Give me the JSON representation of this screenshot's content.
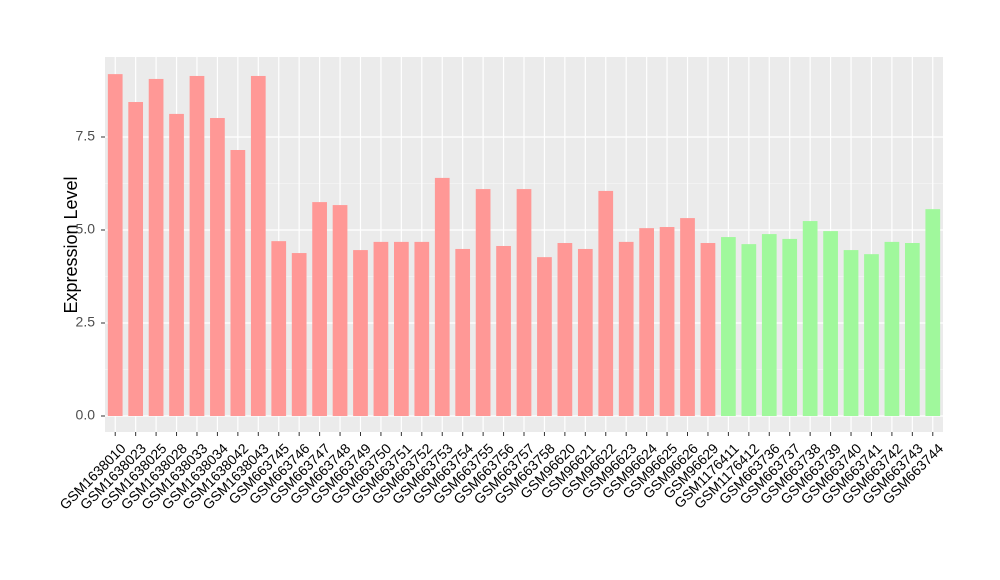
{
  "chart_data": {
    "type": "bar",
    "y_label": "Expression Level",
    "categories": [
      "GSM1638010",
      "GSM1638023",
      "GSM1638025",
      "GSM1638028",
      "GSM1638033",
      "GSM1638034",
      "GSM1638042",
      "GSM1638043",
      "GSM663745",
      "GSM663746",
      "GSM663747",
      "GSM663748",
      "GSM663749",
      "GSM663750",
      "GSM663751",
      "GSM663752",
      "GSM663753",
      "GSM663754",
      "GSM663755",
      "GSM663756",
      "GSM663757",
      "GSM663758",
      "GSM96620",
      "GSM96621",
      "GSM96622",
      "GSM96623",
      "GSM96624",
      "GSM96625",
      "GSM96626",
      "GSM96629",
      "GSM1176411",
      "GSM1176412",
      "GSM663736",
      "GSM663737",
      "GSM663738",
      "GSM663739",
      "GSM663740",
      "GSM663741",
      "GSM663742",
      "GSM663743",
      "GSM663744"
    ],
    "values": [
      9.19,
      8.44,
      9.06,
      8.12,
      9.14,
      8.01,
      7.15,
      9.14,
      4.7,
      4.38,
      5.75,
      5.67,
      4.46,
      4.68,
      4.68,
      4.68,
      6.4,
      4.49,
      6.1,
      4.57,
      6.1,
      4.27,
      4.65,
      4.49,
      6.05,
      4.68,
      5.05,
      5.08,
      5.32,
      4.65,
      4.81,
      4.62,
      4.89,
      4.76,
      5.24,
      4.97,
      4.46,
      4.35,
      4.68,
      4.65,
      5.56
    ],
    "colors": [
      "#ff9896",
      "#ff9896",
      "#ff9896",
      "#ff9896",
      "#ff9896",
      "#ff9896",
      "#ff9896",
      "#ff9896",
      "#ff9896",
      "#ff9896",
      "#ff9896",
      "#ff9896",
      "#ff9896",
      "#ff9896",
      "#ff9896",
      "#ff9896",
      "#ff9896",
      "#ff9896",
      "#ff9896",
      "#ff9896",
      "#ff9896",
      "#ff9896",
      "#ff9896",
      "#ff9896",
      "#ff9896",
      "#ff9896",
      "#ff9896",
      "#ff9896",
      "#ff9896",
      "#ff9896",
      "#a0f89c",
      "#a0f89c",
      "#a0f89c",
      "#a0f89c",
      "#a0f89c",
      "#a0f89c",
      "#a0f89c",
      "#a0f89c",
      "#a0f89c",
      "#a0f89c",
      "#a0f89c"
    ],
    "ylim": [
      -0.43,
      9.65
    ],
    "yticks": [
      {
        "value": 0,
        "label": "0.0"
      },
      2.5,
      {
        "value": 5,
        "label": "5.0"
      },
      7.5
    ],
    "grid": true
  }
}
